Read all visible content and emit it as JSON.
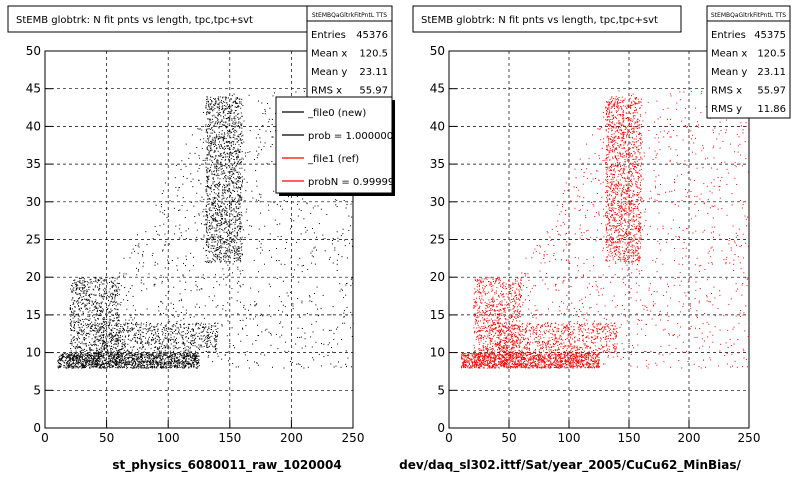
{
  "chart_data": [
    {
      "type": "scatter",
      "title": "StEMB globtrk: N fit pnts vs length, tpc,tpc+svt",
      "stats_title": "StEMBQaGltrkFitPntL TTS",
      "stats": [
        {
          "label": "Entries",
          "value": "45376"
        },
        {
          "label": "Mean x",
          "value": "120.5"
        },
        {
          "label": "Mean y",
          "value": "23.11"
        },
        {
          "label": "RMS x",
          "value": "55.97"
        }
      ],
      "legend": [
        {
          "label": "_file0 (new)",
          "color": "#000000"
        },
        {
          "label": "prob = 1.000000",
          "color": "#000000"
        },
        {
          "label": "_file1 (ref)",
          "color": "#ff0000"
        },
        {
          "label": "probN = 0.99999",
          "color": "#ff0000"
        }
      ],
      "xlabel": "st_physics_6080011_raw_1020004",
      "xlim": [
        0,
        250
      ],
      "ylim": [
        0,
        50
      ],
      "xticks": [
        "0",
        "50",
        "100",
        "150",
        "200",
        "250"
      ],
      "yticks": [
        "0",
        "5",
        "10",
        "15",
        "20",
        "25",
        "30",
        "35",
        "40",
        "45",
        "50"
      ],
      "grid": true,
      "marker_color": "#000000",
      "density_regions": [
        {
          "x": [
            10,
            125
          ],
          "y": [
            8,
            10
          ],
          "weight": 6
        },
        {
          "x": [
            20,
            60
          ],
          "y": [
            8,
            20
          ],
          "weight": 4
        },
        {
          "x": [
            130,
            160
          ],
          "y": [
            22,
            44
          ],
          "weight": 6
        },
        {
          "x": [
            40,
            140
          ],
          "y": [
            10,
            14
          ],
          "weight": 3
        },
        {
          "x": [
            15,
            250
          ],
          "y": [
            8,
            45
          ],
          "weight": 7
        }
      ]
    },
    {
      "type": "scatter",
      "title": "StEMB globtrk: N fit pnts vs length, tpc,tpc+svt",
      "stats_title": "StEMBQaGltrkFitPntL TTS",
      "stats": [
        {
          "label": "Entries",
          "value": "45375"
        },
        {
          "label": "Mean x",
          "value": "120.5"
        },
        {
          "label": "Mean y",
          "value": "23.11"
        },
        {
          "label": "RMS x",
          "value": "55.97"
        },
        {
          "label": "RMS y",
          "value": "11.86"
        }
      ],
      "xlabel": "dev/daq_sl302.ittf/Sat/year_2005/CuCu62_MinBias/",
      "xlim": [
        0,
        250
      ],
      "ylim": [
        0,
        50
      ],
      "xticks": [
        "0",
        "50",
        "100",
        "150",
        "200",
        "250"
      ],
      "yticks": [
        "0",
        "5",
        "10",
        "15",
        "20",
        "25",
        "30",
        "35",
        "40",
        "45",
        "50"
      ],
      "grid": true,
      "marker_color": "#ff0000",
      "density_regions": [
        {
          "x": [
            10,
            125
          ],
          "y": [
            8,
            10
          ],
          "weight": 6
        },
        {
          "x": [
            20,
            60
          ],
          "y": [
            8,
            20
          ],
          "weight": 4
        },
        {
          "x": [
            130,
            160
          ],
          "y": [
            22,
            44
          ],
          "weight": 6
        },
        {
          "x": [
            40,
            140
          ],
          "y": [
            10,
            14
          ],
          "weight": 3
        },
        {
          "x": [
            15,
            250
          ],
          "y": [
            8,
            45
          ],
          "weight": 7
        }
      ]
    }
  ]
}
